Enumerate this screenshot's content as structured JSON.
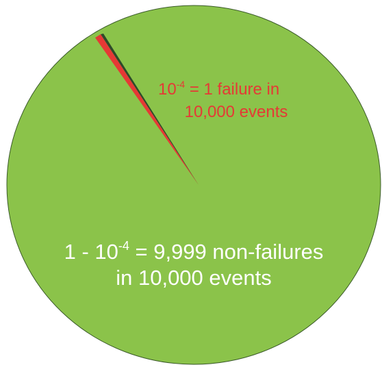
{
  "failure_label": {
    "line1_base": "10",
    "line1_sup": "-4",
    "line1_rest": " = 1 failure in",
    "line2": "10,000 events"
  },
  "success_label": {
    "line1_base": "1 - 10",
    "line1_sup": "-4",
    "line1_rest": " = 9,999 non-failures",
    "line2": "in 10,000 events"
  }
}
